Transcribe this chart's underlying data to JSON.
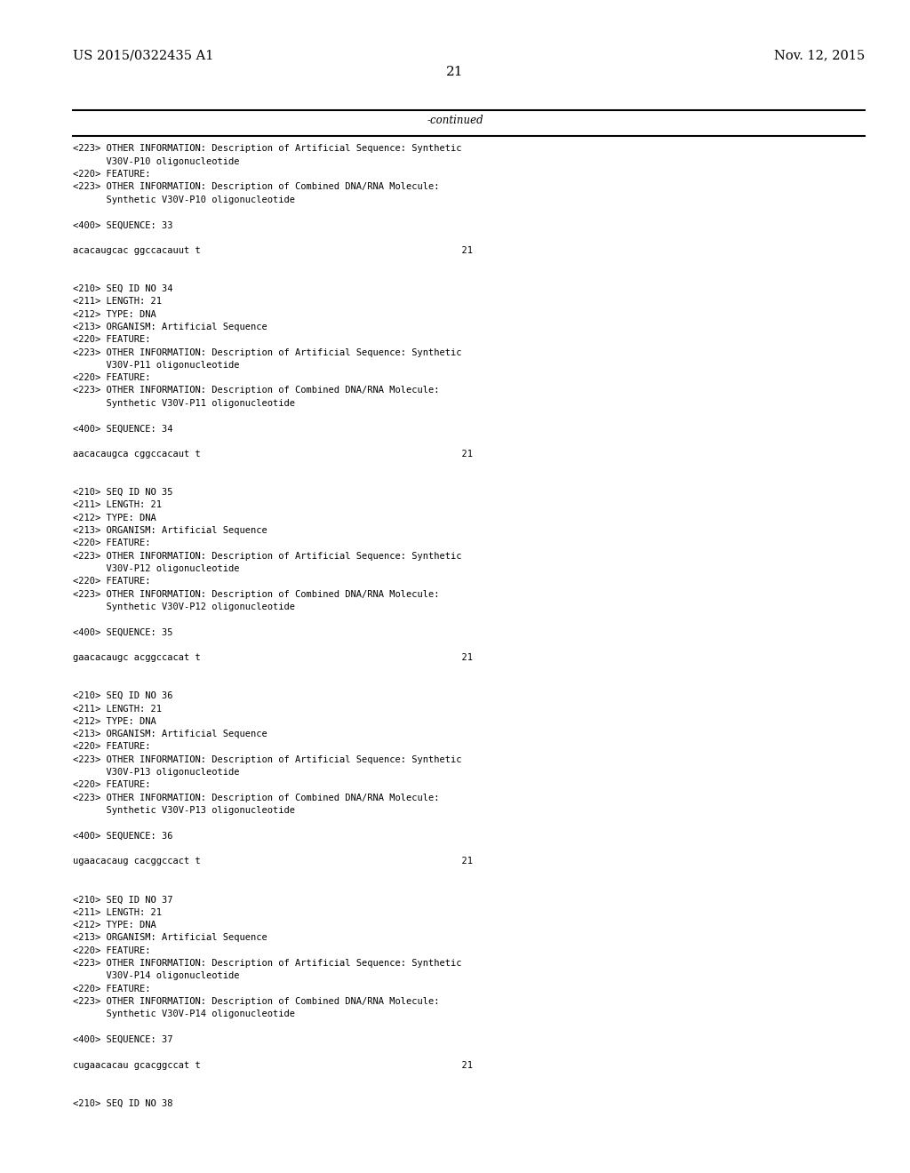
{
  "background_color": "#ffffff",
  "header_left": "US 2015/0322435 A1",
  "header_right": "Nov. 12, 2015",
  "page_number": "21",
  "continued_label": "-continued",
  "font_size_header": 10.5,
  "font_size_body": 8.5,
  "font_size_page_num": 11,
  "lines": [
    "<223> OTHER INFORMATION: Description of Artificial Sequence: Synthetic",
    "      V30V-P10 oligonucleotide",
    "<220> FEATURE:",
    "<223> OTHER INFORMATION: Description of Combined DNA/RNA Molecule:",
    "      Synthetic V30V-P10 oligonucleotide",
    "",
    "<400> SEQUENCE: 33",
    "",
    "acacaugcac ggccacauut t                                               21",
    "",
    "",
    "<210> SEQ ID NO 34",
    "<211> LENGTH: 21",
    "<212> TYPE: DNA",
    "<213> ORGANISM: Artificial Sequence",
    "<220> FEATURE:",
    "<223> OTHER INFORMATION: Description of Artificial Sequence: Synthetic",
    "      V30V-P11 oligonucleotide",
    "<220> FEATURE:",
    "<223> OTHER INFORMATION: Description of Combined DNA/RNA Molecule:",
    "      Synthetic V30V-P11 oligonucleotide",
    "",
    "<400> SEQUENCE: 34",
    "",
    "aacacaugca cggccacaut t                                               21",
    "",
    "",
    "<210> SEQ ID NO 35",
    "<211> LENGTH: 21",
    "<212> TYPE: DNA",
    "<213> ORGANISM: Artificial Sequence",
    "<220> FEATURE:",
    "<223> OTHER INFORMATION: Description of Artificial Sequence: Synthetic",
    "      V30V-P12 oligonucleotide",
    "<220> FEATURE:",
    "<223> OTHER INFORMATION: Description of Combined DNA/RNA Molecule:",
    "      Synthetic V30V-P12 oligonucleotide",
    "",
    "<400> SEQUENCE: 35",
    "",
    "gaacacaugc acggccacat t                                               21",
    "",
    "",
    "<210> SEQ ID NO 36",
    "<211> LENGTH: 21",
    "<212> TYPE: DNA",
    "<213> ORGANISM: Artificial Sequence",
    "<220> FEATURE:",
    "<223> OTHER INFORMATION: Description of Artificial Sequence: Synthetic",
    "      V30V-P13 oligonucleotide",
    "<220> FEATURE:",
    "<223> OTHER INFORMATION: Description of Combined DNA/RNA Molecule:",
    "      Synthetic V30V-P13 oligonucleotide",
    "",
    "<400> SEQUENCE: 36",
    "",
    "ugaacacaug cacggccact t                                               21",
    "",
    "",
    "<210> SEQ ID NO 37",
    "<211> LENGTH: 21",
    "<212> TYPE: DNA",
    "<213> ORGANISM: Artificial Sequence",
    "<220> FEATURE:",
    "<223> OTHER INFORMATION: Description of Artificial Sequence: Synthetic",
    "      V30V-P14 oligonucleotide",
    "<220> FEATURE:",
    "<223> OTHER INFORMATION: Description of Combined DNA/RNA Molecule:",
    "      Synthetic V30V-P14 oligonucleotide",
    "",
    "<400> SEQUENCE: 37",
    "",
    "cugaacacau gcacggccat t                                               21",
    "",
    "",
    "<210> SEQ ID NO 38"
  ]
}
